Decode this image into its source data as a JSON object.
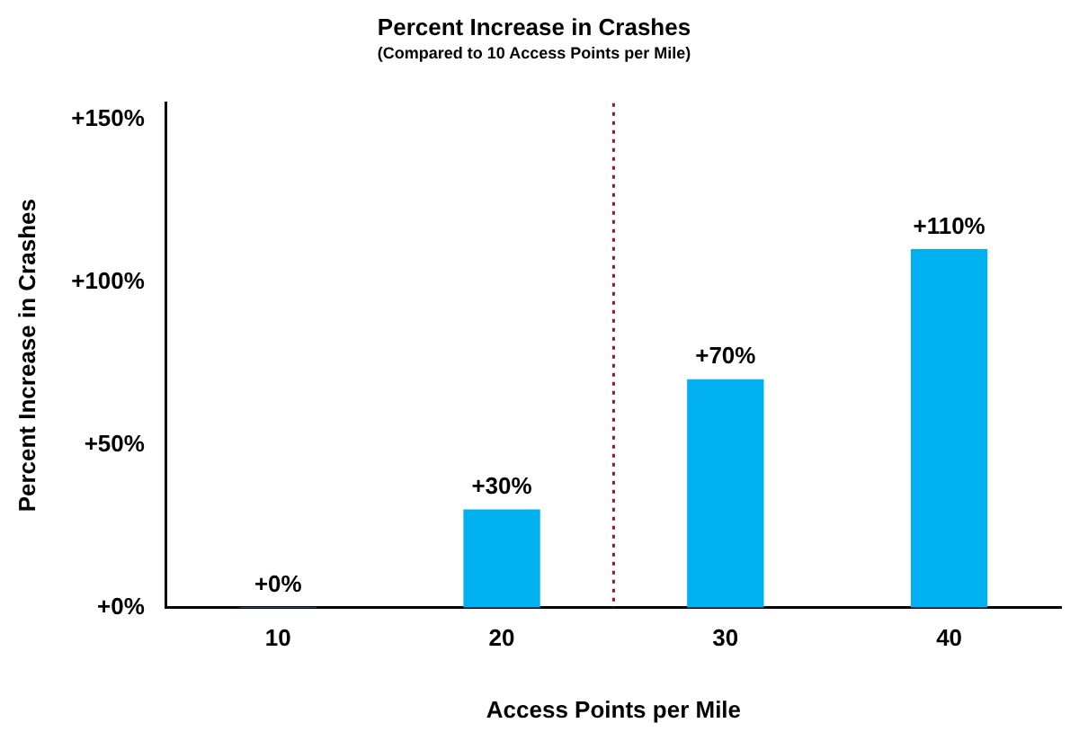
{
  "chart_data": {
    "type": "bar",
    "title": "Percent Increase in Crashes",
    "subtitle": "(Compared to 10 Access Points per Mile)",
    "xlabel": "Access Points per Mile",
    "ylabel": "Percent Increase in Crashes",
    "x": [
      10,
      20,
      30,
      40
    ],
    "values": [
      0,
      30,
      70,
      110
    ],
    "color": "#00b0f0",
    "value_labels": [
      "+0%",
      "+30%",
      "+70%",
      "+110%"
    ],
    "xlim": [
      5,
      45
    ],
    "xticks": [
      10,
      20,
      30,
      40
    ],
    "ylim": [
      0,
      155
    ],
    "yticks": [
      {
        "value": 0,
        "label": "+0%"
      },
      {
        "value": 50,
        "label": "+50%"
      },
      {
        "value": 100,
        "label": "+100%"
      },
      {
        "value": 150,
        "label": "+150%"
      }
    ],
    "ref_lines": [
      {
        "axis": "x",
        "value": 25,
        "color": "#8b1a2b",
        "line_style": "dotted"
      }
    ],
    "grid": false,
    "legend": false
  }
}
